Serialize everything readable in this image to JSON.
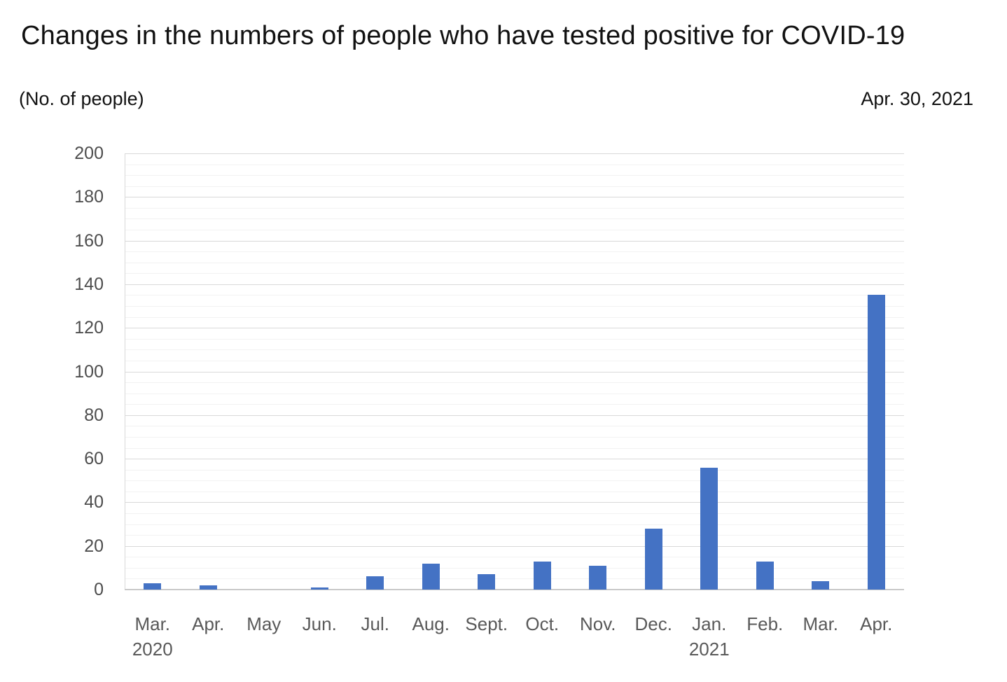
{
  "title": "Changes in the numbers of people who have tested positive for COVID-19",
  "y_axis_unit_label": "(No. of people)",
  "as_of_date_label": "Apr. 30, 2021",
  "colors": {
    "bar": "#4472c4",
    "major_gridline": "#d9d9d9",
    "minor_gridline": "#f2f2f2",
    "x_axis_line": "#c9c9c9",
    "y_axis_line": "#d9d9d9",
    "tick_label": "#595959",
    "title_text": "#111111"
  },
  "chart_data": {
    "type": "bar",
    "title": "Changes in the numbers of people who have tested positive for COVID-19",
    "subtitle_left": "(No. of people)",
    "subtitle_right": "Apr. 30, 2021",
    "categories": [
      "Mar.",
      "Apr.",
      "May",
      "Jun.",
      "Jul.",
      "Aug.",
      "Sept.",
      "Oct.",
      "Nov.",
      "Dec.",
      "Jan.",
      "Feb.",
      "Mar.",
      "Apr."
    ],
    "category_year_sublabels": [
      "2020",
      "",
      "",
      "",
      "",
      "",
      "",
      "",
      "",
      "",
      "2021",
      "",
      "",
      ""
    ],
    "values": [
      3,
      2,
      0,
      1,
      6,
      12,
      7,
      13,
      11,
      28,
      56,
      13,
      4,
      135
    ],
    "xlabel": "",
    "ylabel": "(No. of people)",
    "ylim": [
      0,
      200
    ],
    "y_major_tick_interval": 20,
    "y_minor_tick_interval": 5,
    "y_tick_labels": [
      "0",
      "20",
      "40",
      "60",
      "80",
      "100",
      "120",
      "140",
      "160",
      "180",
      "200"
    ],
    "grid": "horizontal, major and minor, on",
    "legend": "none",
    "bar_color": "#4472c4"
  }
}
